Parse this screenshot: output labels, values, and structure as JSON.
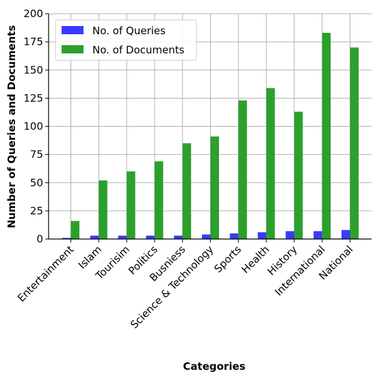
{
  "chart_data": {
    "type": "bar",
    "xlabel": "Categories",
    "ylabel": "Number of Queries and Documents",
    "ylim": [
      0,
      200
    ],
    "yticks": [
      0,
      25,
      50,
      75,
      100,
      125,
      150,
      175,
      200
    ],
    "grid": true,
    "legend_position": "top-left",
    "categories": [
      "Entertainment",
      "Islam",
      "Tourisim",
      "Politics",
      "Busniess",
      "Science & Technology",
      "Sports",
      "Health",
      "History",
      "International",
      "National"
    ],
    "series": [
      {
        "name": "No. of Queries",
        "color": "#3a3aff",
        "values": [
          1,
          3,
          3,
          3,
          3,
          4,
          5,
          6,
          7,
          7,
          8
        ]
      },
      {
        "name": "No. of Documents",
        "color": "#2ca02c",
        "values": [
          16,
          52,
          60,
          69,
          85,
          91,
          123,
          134,
          113,
          183,
          170
        ]
      }
    ]
  }
}
